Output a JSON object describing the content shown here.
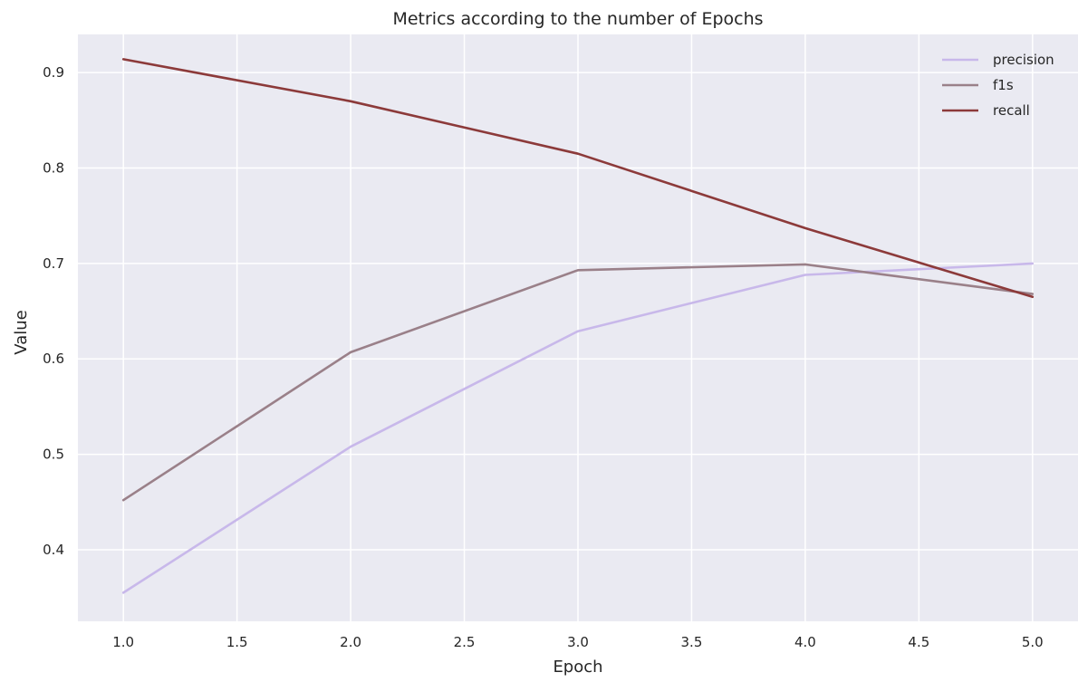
{
  "chart_data": {
    "type": "line",
    "title": "Metrics according to the number of Epochs",
    "xlabel": "Epoch",
    "ylabel": "Value",
    "x": [
      1,
      2,
      3,
      4,
      5
    ],
    "xlim": [
      0.8,
      5.2
    ],
    "ylim": [
      0.325,
      0.94
    ],
    "xticks": [
      "1.0",
      "1.5",
      "2.0",
      "2.5",
      "3.0",
      "3.5",
      "4.0",
      "4.5",
      "5.0"
    ],
    "yticks": [
      "0.4",
      "0.5",
      "0.6",
      "0.7",
      "0.8",
      "0.9"
    ],
    "grid": true,
    "legend_position": "top-right",
    "series": [
      {
        "name": "precision",
        "color": "#c8b8ea",
        "values": [
          0.355,
          0.508,
          0.629,
          0.688,
          0.7
        ]
      },
      {
        "name": "f1s",
        "color": "#9a8089",
        "values": [
          0.452,
          0.607,
          0.693,
          0.699,
          0.668
        ]
      },
      {
        "name": "recall",
        "color": "#8c3a3a",
        "values": [
          0.914,
          0.87,
          0.815,
          0.737,
          0.665
        ]
      }
    ]
  }
}
